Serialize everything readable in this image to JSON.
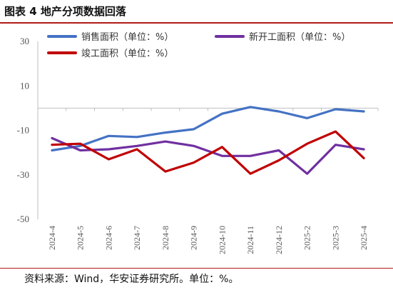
{
  "figure": {
    "title": "图表 4  地产分项数据回落",
    "source": "资料来源：Wind，华安证券研究所。单位：%。"
  },
  "chart_data": {
    "type": "line",
    "categories": [
      "2024-4",
      "2024-5",
      "2024-6",
      "2024-7",
      "2024-8",
      "2024-9",
      "2024-10",
      "2024-11",
      "2024-12",
      "2025-2",
      "2025-3",
      "2025-4"
    ],
    "y_ticks": [
      "30",
      "10",
      "-10",
      "-30",
      "-50"
    ],
    "ylim": [
      -50,
      30
    ],
    "grid": false,
    "legend_position": "top",
    "series": [
      {
        "name": "销售面积（单位：%）",
        "color": "#4472c4",
        "values": [
          -19.0,
          -17.0,
          -12.5,
          -13.0,
          -11.0,
          -9.5,
          -2.5,
          0.5,
          -1.5,
          -4.5,
          -0.5,
          -1.5
        ]
      },
      {
        "name": "新开工面积（单位：%）",
        "color": "#7030a0",
        "values": [
          -13.5,
          -19.0,
          -18.5,
          -17.0,
          -15.0,
          -17.0,
          -21.5,
          -21.5,
          -19.0,
          -29.5,
          -16.5,
          -18.5
        ]
      },
      {
        "name": "竣工面积（单位：%）",
        "color": "#c00000",
        "values": [
          -16.5,
          -16.0,
          -23.0,
          -18.5,
          -28.5,
          -24.5,
          -17.5,
          -29.5,
          -23.5,
          -16.0,
          -10.5,
          -22.5
        ]
      }
    ]
  }
}
